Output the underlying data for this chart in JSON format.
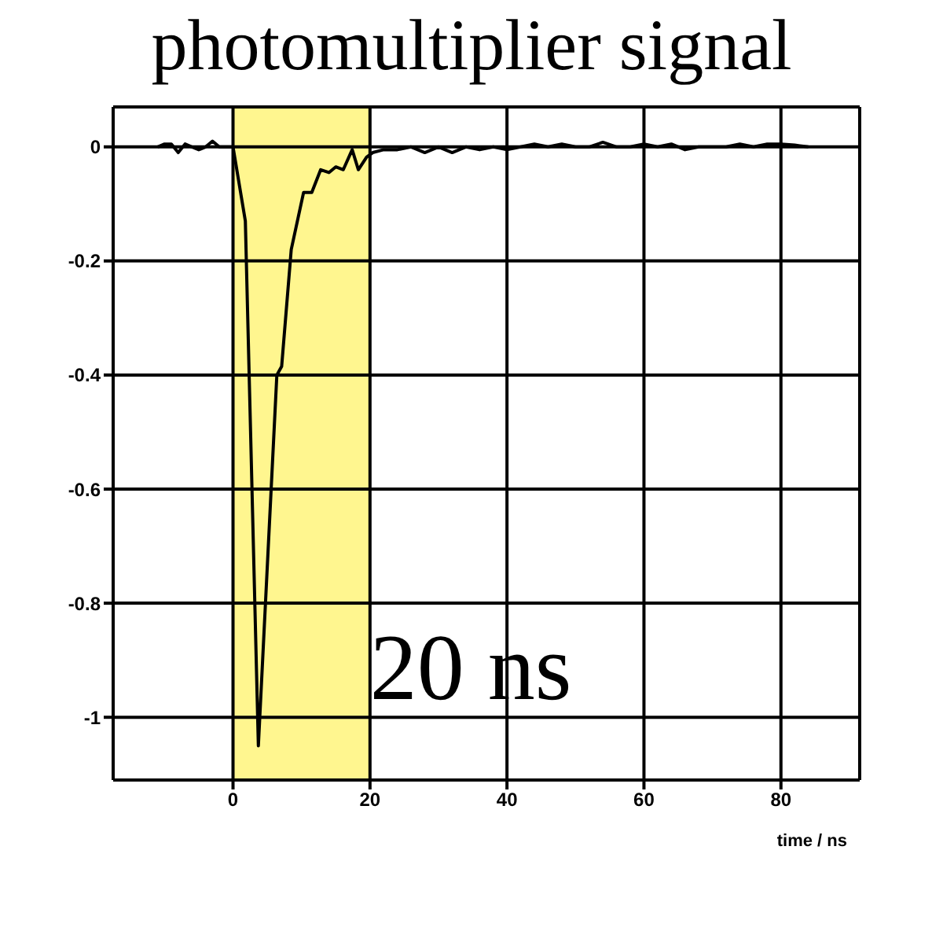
{
  "chart_data": {
    "type": "line",
    "title": "photomultiplier signal",
    "xlabel": "time / ns",
    "series": [
      {
        "color": "#000000",
        "x": [
          -11,
          -10,
          -9,
          -8,
          -7,
          -6,
          -5,
          -4,
          -3,
          -2,
          -1,
          0,
          1.8,
          3.7,
          6.4,
          7.1,
          8.5,
          10.3,
          11.5,
          12.8,
          14,
          15,
          16.1,
          17.4,
          18.3,
          19.5,
          20.4,
          22,
          24,
          26,
          28,
          30,
          32,
          34,
          36,
          38,
          40,
          42,
          44,
          46,
          48,
          50,
          52,
          54,
          56,
          58,
          60,
          62,
          64,
          66,
          68,
          70,
          72,
          74,
          76,
          78,
          80,
          82,
          84
        ],
        "values": [
          0,
          0.005,
          0.005,
          -0.01,
          0.005,
          0,
          -0.005,
          0,
          0.01,
          0,
          0,
          0,
          -0.13,
          -1.05,
          -0.4,
          -0.385,
          -0.18,
          -0.08,
          -0.08,
          -0.04,
          -0.045,
          -0.035,
          -0.04,
          -0.005,
          -0.04,
          -0.018,
          -0.01,
          -0.005,
          -0.005,
          0,
          -0.01,
          0,
          -0.01,
          0,
          -0.005,
          0,
          -0.005,
          0,
          0.005,
          0,
          0.005,
          0,
          0,
          0.008,
          0,
          0,
          0.005,
          0,
          0.005,
          -0.005,
          0,
          0,
          0,
          0.005,
          0,
          0.005,
          0.005,
          0.003,
          0
        ]
      }
    ],
    "xlim": [
      -17.5,
      91.5
    ],
    "xticks": [
      0,
      20,
      40,
      60,
      80
    ],
    "ylim": [
      -1.11,
      0.07
    ],
    "yticks": [
      0,
      -0.2,
      -0.4,
      -0.6,
      -0.8,
      -1
    ],
    "grid": true,
    "marker": "none",
    "line_style": "solid",
    "bands": [
      {
        "axis": "x",
        "from": 0,
        "to": 20,
        "label": "20 ns",
        "color": "#fff68f"
      }
    ]
  }
}
